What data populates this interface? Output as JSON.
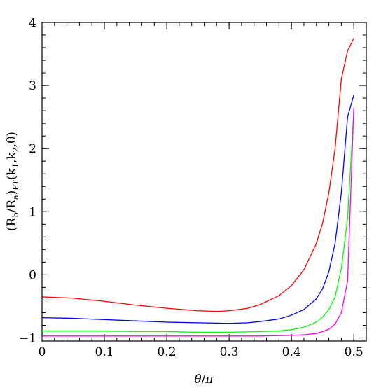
{
  "chart_data": {
    "type": "line",
    "title": "",
    "xlabel_parts": [
      "θ",
      "/",
      "π"
    ],
    "ylabel_parts": [
      "(R",
      "b",
      "/R",
      "a",
      ")",
      "PT",
      "(k",
      "1",
      ",k",
      "2",
      ",θ)"
    ],
    "xlim": [
      0,
      0.52
    ],
    "ylim": [
      -1.05,
      4
    ],
    "x_ticks": [
      "0",
      "0.1",
      "0.2",
      "0.3",
      "0.4",
      "0.5"
    ],
    "y_ticks": [
      "−1",
      "0",
      "1",
      "2",
      "3",
      "4"
    ],
    "x_tick_values": [
      0,
      0.1,
      0.2,
      0.3,
      0.4,
      0.5
    ],
    "y_tick_values": [
      -1,
      0,
      1,
      2,
      3,
      4
    ],
    "x_minor_step": 0.02,
    "y_minor_step": 0.2,
    "grid": false,
    "legend": "none",
    "series": [
      {
        "color": "#ff0000",
        "x": [
          0,
          0.05,
          0.1,
          0.15,
          0.2,
          0.25,
          0.28,
          0.3,
          0.33,
          0.35,
          0.38,
          0.4,
          0.42,
          0.44,
          0.45,
          0.46,
          0.47,
          0.48,
          0.49,
          0.5
        ],
        "y": [
          -0.35,
          -0.37,
          -0.42,
          -0.48,
          -0.53,
          -0.57,
          -0.58,
          -0.57,
          -0.53,
          -0.47,
          -0.33,
          -0.17,
          0.08,
          0.5,
          0.82,
          1.3,
          2.0,
          3.1,
          3.55,
          3.75
        ]
      },
      {
        "color": "#0000ff",
        "x": [
          0,
          0.05,
          0.1,
          0.15,
          0.2,
          0.25,
          0.3,
          0.33,
          0.35,
          0.38,
          0.4,
          0.42,
          0.44,
          0.45,
          0.46,
          0.47,
          0.48,
          0.49,
          0.5
        ],
        "y": [
          -0.68,
          -0.69,
          -0.71,
          -0.73,
          -0.75,
          -0.76,
          -0.77,
          -0.76,
          -0.74,
          -0.7,
          -0.64,
          -0.55,
          -0.38,
          -0.22,
          0.05,
          0.5,
          1.3,
          2.5,
          2.85
        ]
      },
      {
        "color": "#00ff00",
        "x": [
          0,
          0.05,
          0.1,
          0.15,
          0.2,
          0.25,
          0.3,
          0.35,
          0.38,
          0.4,
          0.42,
          0.44,
          0.45,
          0.46,
          0.47,
          0.48,
          0.49,
          0.5
        ],
        "y": [
          -0.89,
          -0.89,
          -0.89,
          -0.9,
          -0.9,
          -0.91,
          -0.91,
          -0.9,
          -0.89,
          -0.87,
          -0.83,
          -0.75,
          -0.67,
          -0.55,
          -0.35,
          0.1,
          0.9,
          2.6
        ]
      },
      {
        "color": "#ff00ff",
        "x": [
          0,
          0.05,
          0.1,
          0.15,
          0.2,
          0.25,
          0.3,
          0.35,
          0.4,
          0.42,
          0.44,
          0.45,
          0.46,
          0.47,
          0.48,
          0.49,
          0.5
        ],
        "y": [
          -0.97,
          -0.97,
          -0.97,
          -0.97,
          -0.97,
          -0.97,
          -0.97,
          -0.97,
          -0.96,
          -0.95,
          -0.93,
          -0.9,
          -0.86,
          -0.78,
          -0.6,
          -0.1,
          2.65
        ]
      }
    ]
  }
}
